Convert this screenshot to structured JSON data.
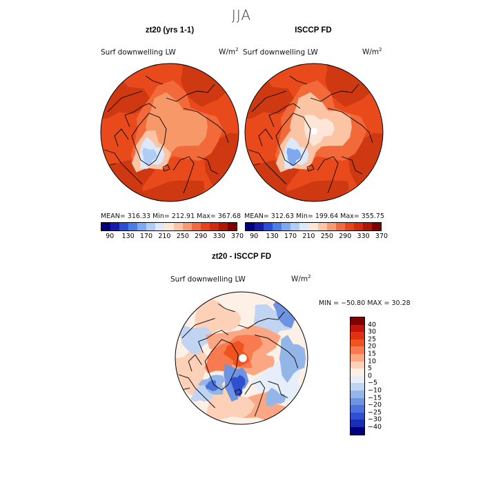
{
  "title": "JJA",
  "panels": [
    {
      "title": "zt20 (yrs 1-1)",
      "variable": "Surf downwelling LW",
      "units_base": "W/m",
      "units_exp": "2",
      "stats": "MEAN= 316.33   Min= 212.91   Max= 367.68"
    },
    {
      "title": "ISCCP FD",
      "variable": "Surf downwelling LW",
      "units_base": "W/m",
      "units_exp": "2",
      "stats": "MEAN= 312.63   Min= 199.64   Max= 355.75"
    },
    {
      "title": "zt20 - ISCCP FD",
      "variable": "Surf downwelling LW",
      "units_base": "W/m",
      "units_exp": "2",
      "stats": "MIN = −50.80  MAX =   30.28"
    }
  ],
  "colorbar_top": {
    "colors": [
      "#00007f",
      "#1a1aa8",
      "#2a4fd6",
      "#4a7fe8",
      "#7fa8f0",
      "#b0cdf6",
      "#dde9fb",
      "#fde6d8",
      "#fbc6a8",
      "#f89b74",
      "#f26a42",
      "#e8431f",
      "#d42a10",
      "#ae1706",
      "#7f0000"
    ],
    "tick_labels": [
      "90",
      "130",
      "170",
      "210",
      "250",
      "290",
      "330",
      "370"
    ]
  },
  "colorbar_diff": {
    "colors": [
      "#7f0000",
      "#c2150a",
      "#e03212",
      "#f0531e",
      "#f77b4f",
      "#fba784",
      "#fdd0b8",
      "#fdf0e6",
      "#e6eef9",
      "#c1d4f1",
      "#94b5e8",
      "#6e93e2",
      "#4d72dc",
      "#2d4fd0",
      "#1a2fb8",
      "#00007f"
    ],
    "tick_labels": [
      "40",
      "30",
      "25",
      "20",
      "15",
      "10",
      "5",
      "0",
      "−5",
      "−10",
      "−15",
      "−20",
      "−25",
      "−30",
      "−40"
    ]
  },
  "map_palette": {
    "deep_red": "#c93610",
    "red": "#e84a1c",
    "orange": "#f26a3a",
    "light_orange": "#f79868",
    "peach": "#fbc4a4",
    "pale": "#fde6d8",
    "white": "#ffffff",
    "pale_blue": "#dde9fb",
    "light_blue": "#b0cdf6",
    "blue": "#7fa8f0",
    "mid_blue": "#4a7fe8",
    "dark_blue": "#2a4fd6",
    "coast": "#000000"
  }
}
